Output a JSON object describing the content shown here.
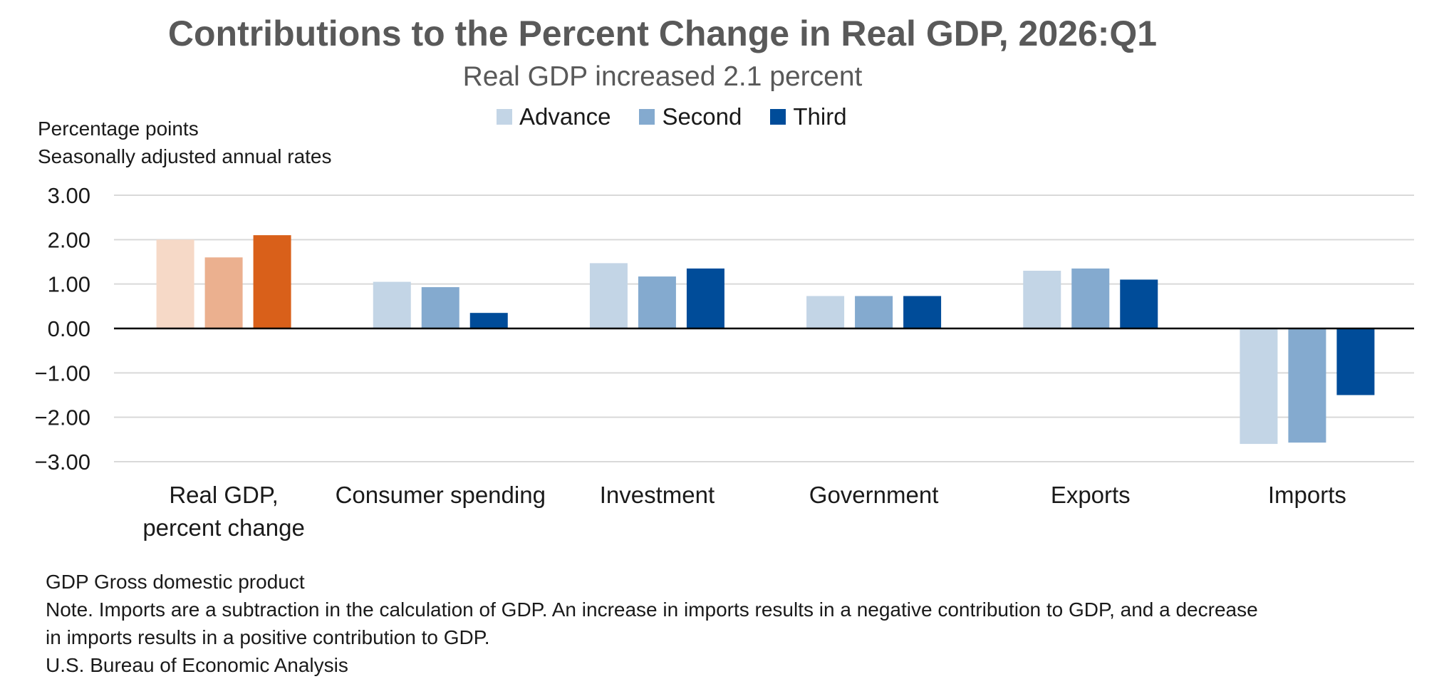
{
  "header": {
    "title": "Contributions to the Percent Change in Real GDP, 2026:Q1",
    "subtitle": "Real GDP increased 2.1 percent"
  },
  "legend": {
    "items": [
      {
        "label": "Advance",
        "color": "#c3d5e6"
      },
      {
        "label": "Second",
        "color": "#84aacf"
      },
      {
        "label": "Third",
        "color": "#004c99"
      }
    ]
  },
  "axis": {
    "unit_line1": "Percentage points",
    "unit_line2": "Seasonally adjusted annual rates"
  },
  "notes": {
    "line1": "GDP Gross domestic product",
    "line2": "Note. Imports are a subtraction in the calculation of GDP. An increase in imports results in a negative contribution to GDP, and a decrease",
    "line3": "in imports results in a positive contribution to GDP.",
    "line4": "U.S. Bureau of Economic Analysis"
  },
  "chart_data": {
    "type": "bar",
    "title": "Contributions to the Percent Change in Real GDP, 2026:Q1",
    "subtitle": "Real GDP increased 2.1 percent",
    "ylabel": "Percentage points",
    "ylim": [
      -3,
      3
    ],
    "yticks": [
      "3.00",
      "2.00",
      "1.00",
      "0.00",
      "−1.00",
      "−2.00",
      "−3.00"
    ],
    "ytick_values": [
      3,
      2,
      1,
      0,
      -1,
      -2,
      -3
    ],
    "grid": true,
    "legend_position": "top-center",
    "categories": [
      [
        "Real GDP,",
        "percent change"
      ],
      [
        "Consumer spending"
      ],
      [
        "Investment"
      ],
      [
        "Government"
      ],
      [
        "Exports"
      ],
      [
        "Imports"
      ]
    ],
    "series": [
      {
        "name": "Advance",
        "values": [
          2.0,
          1.05,
          1.47,
          0.73,
          1.3,
          -2.6
        ]
      },
      {
        "name": "Second",
        "values": [
          1.6,
          0.93,
          1.17,
          0.73,
          1.35,
          -2.57
        ]
      },
      {
        "name": "Third",
        "values": [
          2.1,
          0.35,
          1.35,
          0.73,
          1.1,
          -1.5
        ]
      }
    ],
    "colors": {
      "Advance": "#c3d5e6",
      "Second": "#84aacf",
      "Third": "#004c99",
      "gdp_Advance": "#f6d9c7",
      "gdp_Second": "#ebb08f",
      "gdp_Third": "#d9601a"
    }
  }
}
